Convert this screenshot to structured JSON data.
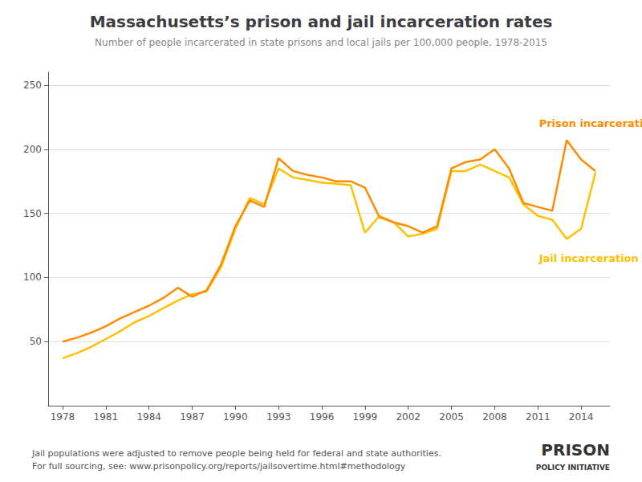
{
  "chart_data": {
    "type": "line",
    "title": "Massachusetts’s prison and jail incarceration rates",
    "subtitle": "Number of people incarcerated in state prisons and local jails per 100,000 people, 1978-2015",
    "x": [
      1978,
      1979,
      1980,
      1981,
      1982,
      1983,
      1984,
      1985,
      1986,
      1987,
      1988,
      1989,
      1990,
      1991,
      1992,
      1993,
      1994,
      1995,
      1996,
      1997,
      1998,
      1999,
      2000,
      2001,
      2002,
      2003,
      2004,
      2005,
      2006,
      2007,
      2008,
      2009,
      2010,
      2011,
      2012,
      2013,
      2014,
      2015
    ],
    "series": [
      {
        "color": "#ffc000",
        "values": [
          37,
          41,
          46,
          52,
          58,
          65,
          70,
          76,
          82,
          87,
          89,
          108,
          138,
          162,
          157,
          185,
          178,
          176,
          174,
          173,
          172,
          135,
          148,
          143,
          132,
          134,
          138,
          183,
          183,
          188,
          183,
          178,
          157,
          148,
          145,
          130,
          138,
          182
        ]
      },
      {
        "color": "#ff8c00",
        "values": [
          50,
          53,
          57,
          62,
          68,
          73,
          78,
          84,
          92,
          85,
          90,
          110,
          140,
          160,
          155,
          193,
          183,
          180,
          178,
          175,
          175,
          170,
          147,
          143,
          140,
          135,
          140,
          185,
          190,
          192,
          200,
          185,
          158,
          155,
          152,
          207,
          192,
          183
        ]
      }
    ],
    "annotations": [
      {
        "text": "Prison incarceration rate",
        "x": 2010.8,
        "y": 220,
        "color": "#ff8c00"
      },
      {
        "text": "Jail incarceration rate",
        "x": 2010.8,
        "y": 115,
        "color": "#ffc000"
      }
    ],
    "xlim": [
      1977,
      2016
    ],
    "xticks": [
      1978,
      1981,
      1984,
      1987,
      1990,
      1993,
      1996,
      1999,
      2002,
      2005,
      2008,
      2011,
      2014
    ],
    "ylim": [
      0,
      260
    ],
    "yticks": [
      50,
      100,
      150,
      200,
      250
    ],
    "grid": true,
    "footnotes": [
      "Jail populations were adjusted to remove people being held for federal and state authorities.",
      "For full sourcing, see: www.prisonpolicy.org/reports/jailsovertime.html#methodology"
    ],
    "logo": [
      "PRISON",
      "POLICY INITIATIVE"
    ]
  }
}
